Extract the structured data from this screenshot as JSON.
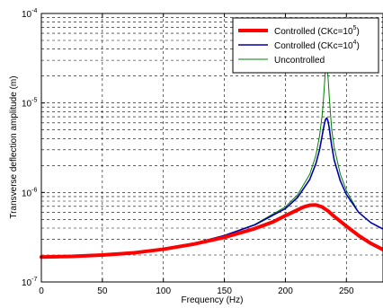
{
  "chart_data": {
    "type": "line",
    "title": "",
    "xlabel": "Frequency (Hz)",
    "ylabel": "Transverse deflection amplitude (m)",
    "xlim": [
      0,
      280
    ],
    "ylim": [
      1e-07,
      0.0001
    ],
    "yscale": "log",
    "grid": true,
    "legend_position": "top-right",
    "x_ticks": [
      0,
      50,
      100,
      150,
      200,
      250
    ],
    "x_tick_labels": [
      "0",
      "50",
      "100",
      "150",
      "200",
      "250"
    ],
    "y_ticks": [
      1e-07,
      1e-06,
      1e-05,
      0.0001
    ],
    "y_tick_labels": [
      {
        "base": "10",
        "exp": "-7"
      },
      {
        "base": "10",
        "exp": "-6"
      },
      {
        "base": "10",
        "exp": "-5"
      },
      {
        "base": "10",
        "exp": "-4"
      }
    ],
    "series": [
      {
        "name": "Uncontrolled",
        "legend_label": {
          "text": "Uncontrolled"
        },
        "color": "#008000",
        "width": 1,
        "x": [
          0,
          25,
          50,
          75,
          100,
          125,
          150,
          175,
          200,
          210,
          220,
          225,
          228,
          230,
          231,
          232,
          233,
          234,
          235,
          236,
          237,
          238,
          240,
          245,
          250,
          260,
          270,
          280
        ],
        "y": [
          1.9e-07,
          1.93e-07,
          2e-07,
          2.12e-07,
          2.35e-07,
          2.7e-07,
          3.3e-07,
          4.4e-07,
          6.9e-07,
          9.4e-07,
          1.6e-06,
          2.6e-06,
          4.3e-06,
          7e-06,
          1e-05,
          1.6e-05,
          2.6e-05,
          2.8e-05,
          1.9e-05,
          1.15e-05,
          7.5e-06,
          5e-06,
          3.2e-06,
          1.6e-06,
          1.05e-06,
          6e-07,
          4.6e-07,
          3.9e-07
        ]
      },
      {
        "name": "Controlled (CKc=10^4)",
        "legend_label": {
          "text": "Controlled (CKc=10",
          "sup": "4",
          "tail": ")"
        },
        "color": "#0000aa",
        "width": 1.6,
        "x": [
          0,
          25,
          50,
          75,
          100,
          125,
          150,
          175,
          200,
          210,
          220,
          225,
          228,
          230,
          231,
          232,
          233,
          234,
          235,
          236,
          237,
          238,
          240,
          245,
          250,
          260,
          270,
          280
        ],
        "y": [
          1.9e-07,
          1.93e-07,
          2e-07,
          2.12e-07,
          2.35e-07,
          2.7e-07,
          3.3e-07,
          4.35e-07,
          6.6e-07,
          8.8e-07,
          1.4e-06,
          2.1e-06,
          3e-06,
          4.2e-06,
          5e-06,
          5.9e-06,
          6.6e-06,
          6.8e-06,
          6.2e-06,
          5.2e-06,
          4.1e-06,
          3.3e-06,
          2.3e-06,
          1.35e-06,
          9.5e-07,
          6e-07,
          4.6e-07,
          3.9e-07
        ]
      },
      {
        "name": "Controlled (CKc=10^5)",
        "legend_label": {
          "text": "Controlled (CKc=10",
          "sup": "5",
          "tail": ")"
        },
        "color": "#ff0000",
        "width": 4,
        "x": [
          0,
          25,
          50,
          75,
          100,
          125,
          150,
          175,
          190,
          200,
          210,
          215,
          220,
          225,
          230,
          235,
          240,
          250,
          260,
          270,
          280
        ],
        "y": [
          1.9e-07,
          1.93e-07,
          2e-07,
          2.11e-07,
          2.32e-07,
          2.65e-07,
          3.15e-07,
          3.95e-07,
          4.7e-07,
          5.5e-07,
          6.4e-07,
          6.9e-07,
          7.2e-07,
          7.25e-07,
          6.9e-07,
          6.2e-07,
          5.4e-07,
          4.2e-07,
          3.3e-07,
          2.7e-07,
          2.3e-07
        ]
      }
    ],
    "legend_order": [
      2,
      1,
      0
    ]
  }
}
